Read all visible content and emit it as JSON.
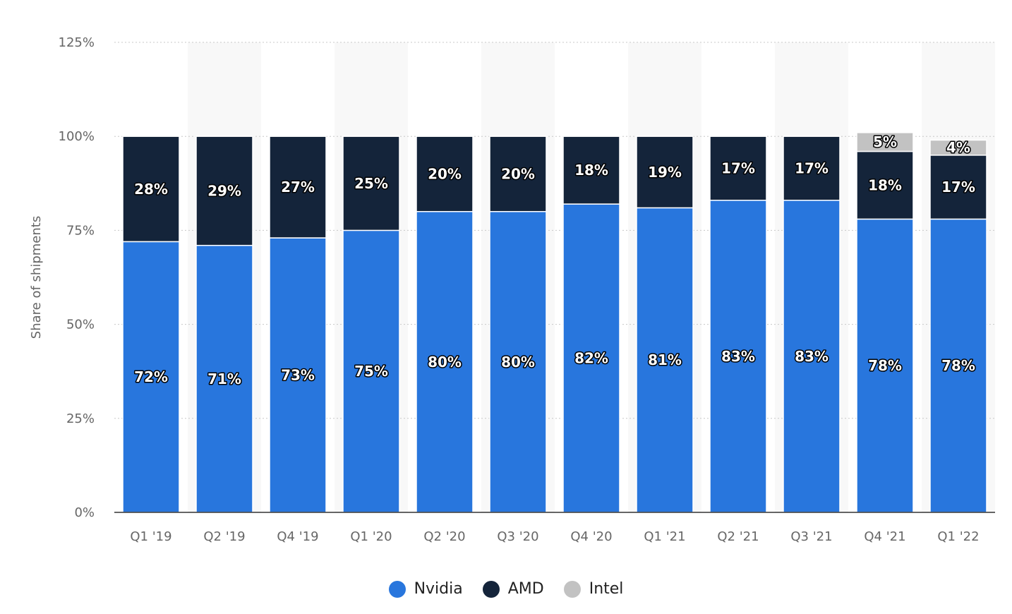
{
  "chart_data": {
    "type": "bar",
    "stacked": true,
    "ylabel": "Share of shipments",
    "xlabel": "",
    "ylim": [
      0,
      125
    ],
    "yticks": [
      "0%",
      "25%",
      "50%",
      "75%",
      "100%",
      "125%"
    ],
    "ytick_values": [
      0,
      25,
      50,
      75,
      100,
      125
    ],
    "grid": true,
    "legend_position": "bottom-center",
    "categories": [
      "Q1 '19",
      "Q2 '19",
      "Q4 '19",
      "Q1 '20",
      "Q2 '20",
      "Q3 '20",
      "Q4 '20",
      "Q1 '21",
      "Q2 '21",
      "Q3 '21",
      "Q4 '21",
      "Q1 '22"
    ],
    "series": [
      {
        "name": "Nvidia",
        "color": "#2876dd",
        "values": [
          72,
          71,
          73,
          75,
          80,
          80,
          82,
          81,
          83,
          83,
          78,
          78
        ],
        "labels": [
          "72%",
          "71%",
          "73%",
          "75%",
          "80%",
          "80%",
          "82%",
          "81%",
          "83%",
          "83%",
          "78%",
          "78%"
        ]
      },
      {
        "name": "AMD",
        "color": "#14243a",
        "values": [
          28,
          29,
          27,
          25,
          20,
          20,
          18,
          19,
          17,
          17,
          18,
          17
        ],
        "labels": [
          "28%",
          "29%",
          "27%",
          "25%",
          "20%",
          "20%",
          "18%",
          "19%",
          "17%",
          "17%",
          "18%",
          "17%"
        ]
      },
      {
        "name": "Intel",
        "color": "#c2c2c2",
        "values": [
          null,
          null,
          null,
          null,
          null,
          null,
          null,
          null,
          null,
          null,
          5,
          4
        ],
        "labels": [
          "",
          "",
          "",
          "",
          "",
          "",
          "",
          "",
          "",
          "",
          "5%",
          "4%"
        ]
      }
    ]
  },
  "legend": {
    "items": [
      {
        "label": "Nvidia",
        "color": "#2876dd"
      },
      {
        "label": "AMD",
        "color": "#14243a"
      },
      {
        "label": "Intel",
        "color": "#c2c2c2"
      }
    ]
  }
}
